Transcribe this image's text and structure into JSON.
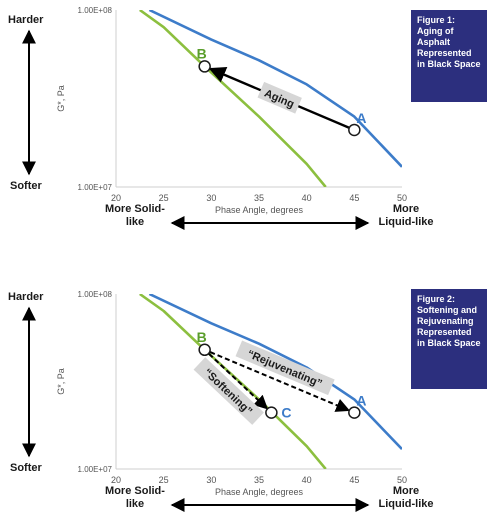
{
  "chart_data": [
    {
      "type": "line",
      "x_scale": "linear",
      "y_scale": "log",
      "xlim": [
        20,
        50
      ],
      "ylim": [
        10000000,
        100000000
      ],
      "x_ticks": [
        "20",
        "25",
        "30",
        "35",
        "40",
        "45",
        "50"
      ],
      "y_ticks": [
        "1.00E+07",
        "1.00E+08"
      ],
      "xlabel": "Phase Angle, degrees",
      "ylabel": "G*, Pa",
      "series": [
        {
          "color": "#3d7cc9",
          "x": [
            23.5,
            30,
            35,
            40,
            45,
            50
          ],
          "y": [
            100000000,
            68000000,
            52000000,
            38000000,
            25000000,
            13000000
          ]
        },
        {
          "color": "#8cbf3f",
          "x": [
            22.5,
            25,
            29.3,
            35,
            40,
            42
          ],
          "y": [
            100000000,
            80000000,
            48000000,
            25000000,
            13500000,
            10000000
          ]
        }
      ],
      "points": [
        {
          "label": "A",
          "x": 45,
          "y": 21000000,
          "label_color": "#3d7cc9"
        },
        {
          "label": "B",
          "x": 29.3,
          "y": 48000000,
          "label_color": "#5a9e2b"
        }
      ],
      "arrows": [
        {
          "from": "A",
          "to": "B",
          "style": "solid",
          "label": "Aging"
        }
      ],
      "figure_box": "Figure 1: Aging of Asphalt Represented in Black Space",
      "y_side": {
        "top": "Harder",
        "bottom": "Softer"
      },
      "x_side": {
        "left": "More Solid-like",
        "right": "More Liquid-like"
      }
    },
    {
      "type": "line",
      "x_scale": "linear",
      "y_scale": "log",
      "xlim": [
        20,
        50
      ],
      "ylim": [
        10000000,
        100000000
      ],
      "x_ticks": [
        "20",
        "25",
        "30",
        "35",
        "40",
        "45",
        "50"
      ],
      "y_ticks": [
        "1.00E+07",
        "1.00E+08"
      ],
      "xlabel": "Phase Angle, degrees",
      "ylabel": "G*, Pa",
      "series": [
        {
          "color": "#3d7cc9",
          "x": [
            23.5,
            30,
            35,
            40,
            45,
            50
          ],
          "y": [
            100000000,
            68000000,
            52000000,
            38000000,
            25000000,
            13000000
          ]
        },
        {
          "color": "#8cbf3f",
          "x": [
            22.5,
            25,
            29.3,
            35,
            40,
            42
          ],
          "y": [
            100000000,
            80000000,
            48000000,
            25000000,
            13500000,
            10000000
          ]
        }
      ],
      "points": [
        {
          "label": "A",
          "x": 45,
          "y": 21000000,
          "label_color": "#3d7cc9"
        },
        {
          "label": "B",
          "x": 29.3,
          "y": 48000000,
          "label_color": "#5a9e2b"
        },
        {
          "label": "C",
          "x": 36.3,
          "y": 21000000,
          "label_color": "#3d7cc9"
        }
      ],
      "arrows": [
        {
          "from": "B",
          "to": "A",
          "style": "dashed",
          "label": "“Rejuvenating”"
        },
        {
          "from": "B",
          "to": "C",
          "style": "dashed",
          "label": "“Softening”"
        }
      ],
      "figure_box": "Figure 2: Softening and Rejuvenating Represented in Black Space",
      "y_side": {
        "top": "Harder",
        "bottom": "Softer"
      },
      "x_side": {
        "left": "More Solid-like",
        "right": "More Liquid-like"
      }
    }
  ]
}
